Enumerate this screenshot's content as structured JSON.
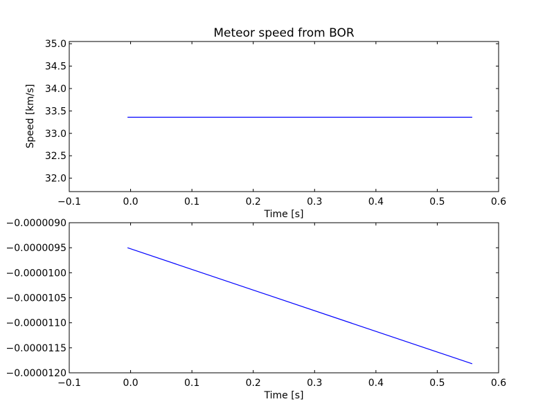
{
  "chart_data": [
    {
      "type": "line",
      "title": "Meteor speed from  BOR",
      "xlabel": "Time [s]",
      "ylabel": "Speed [km/s]",
      "xlim": [
        -0.1,
        0.6
      ],
      "ylim": [
        31.7,
        35.05
      ],
      "xticks": [
        -0.1,
        0.0,
        0.1,
        0.2,
        0.3,
        0.4,
        0.5,
        0.6
      ],
      "xtick_labels": [
        "−0.1",
        "0.0",
        "0.1",
        "0.2",
        "0.3",
        "0.4",
        "0.5",
        "0.6"
      ],
      "yticks": [
        32.0,
        32.5,
        33.0,
        33.5,
        34.0,
        34.5,
        35.0
      ],
      "ytick_labels": [
        "32.0",
        "32.5",
        "33.0",
        "33.5",
        "34.0",
        "34.5",
        "35.0"
      ],
      "grid": false,
      "series": [
        {
          "x": [
            -0.005,
            0.557
          ],
          "y": [
            33.36,
            33.36
          ],
          "color": "#0000ff"
        }
      ]
    },
    {
      "type": "line",
      "title": "",
      "xlabel": "Time [s]",
      "ylabel": "",
      "xlim": [
        -0.1,
        0.6
      ],
      "ylim": [
        -1.2e-05,
        -9e-06
      ],
      "xticks": [
        -0.1,
        0.0,
        0.1,
        0.2,
        0.3,
        0.4,
        0.5,
        0.6
      ],
      "xtick_labels": [
        "−0.1",
        "0.0",
        "0.1",
        "0.2",
        "0.3",
        "0.4",
        "0.5",
        "0.6"
      ],
      "yticks": [
        -1.2e-05,
        -1.15e-05,
        -1.1e-05,
        -1.05e-05,
        -1e-05,
        -9.5e-06,
        -9e-06
      ],
      "ytick_labels": [
        "−0.0000120",
        "−0.0000115",
        "−0.0000110",
        "−0.0000105",
        "−0.0000100",
        "−0.0000095",
        "−0.0000090"
      ],
      "grid": false,
      "series": [
        {
          "x": [
            -0.005,
            0.557
          ],
          "y": [
            -9.5e-06,
            -1.182e-05
          ],
          "color": "#0000ff"
        }
      ]
    }
  ]
}
